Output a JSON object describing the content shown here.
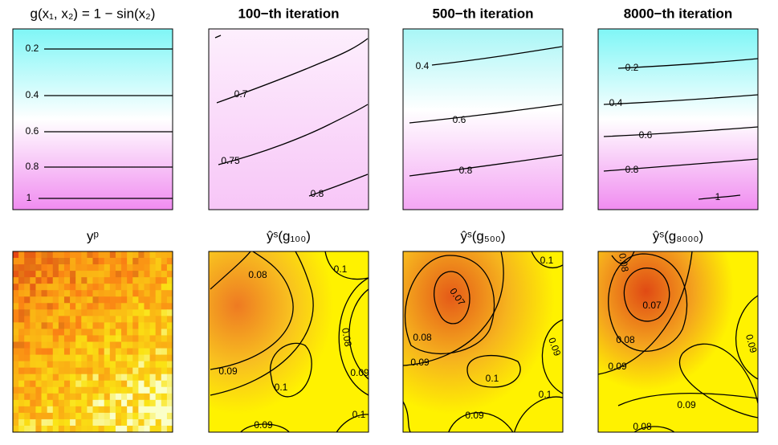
{
  "panels": [
    {
      "title": "g(x₁, x₂) = 1 − sin(x₂)",
      "labels": [
        "0.2",
        "0.4",
        "0.6",
        "0.8",
        "1"
      ]
    },
    {
      "title": "100−th iteration",
      "labels": [
        "0.7",
        "0.75",
        "0.8"
      ]
    },
    {
      "title": "500−th iteration",
      "labels": [
        "0.4",
        "0.6",
        "0.8"
      ]
    },
    {
      "title": "8000−th iteration",
      "labels": [
        "0.2",
        "0.4",
        "0.6",
        "0.8",
        "1"
      ]
    },
    {
      "title": "yᵖ",
      "labels": []
    },
    {
      "title": "ŷˢ(g₁₀₀)",
      "labels": [
        "0.08",
        "0.09",
        "0.1",
        "0.1",
        "0.08",
        "0.09",
        "0.1",
        "0.09"
      ]
    },
    {
      "title": "ŷˢ(g₅₀₀)",
      "labels": [
        "0.07",
        "0.08",
        "0.09",
        "0.1",
        "0.1",
        "0.09",
        "0.1",
        "0.09"
      ]
    },
    {
      "title": "ŷˢ(g₈₀₀₀)",
      "labels": [
        "0.08",
        "0.07",
        "0.08",
        "0.09",
        "0.09",
        "0.09",
        "0.08"
      ]
    }
  ]
}
